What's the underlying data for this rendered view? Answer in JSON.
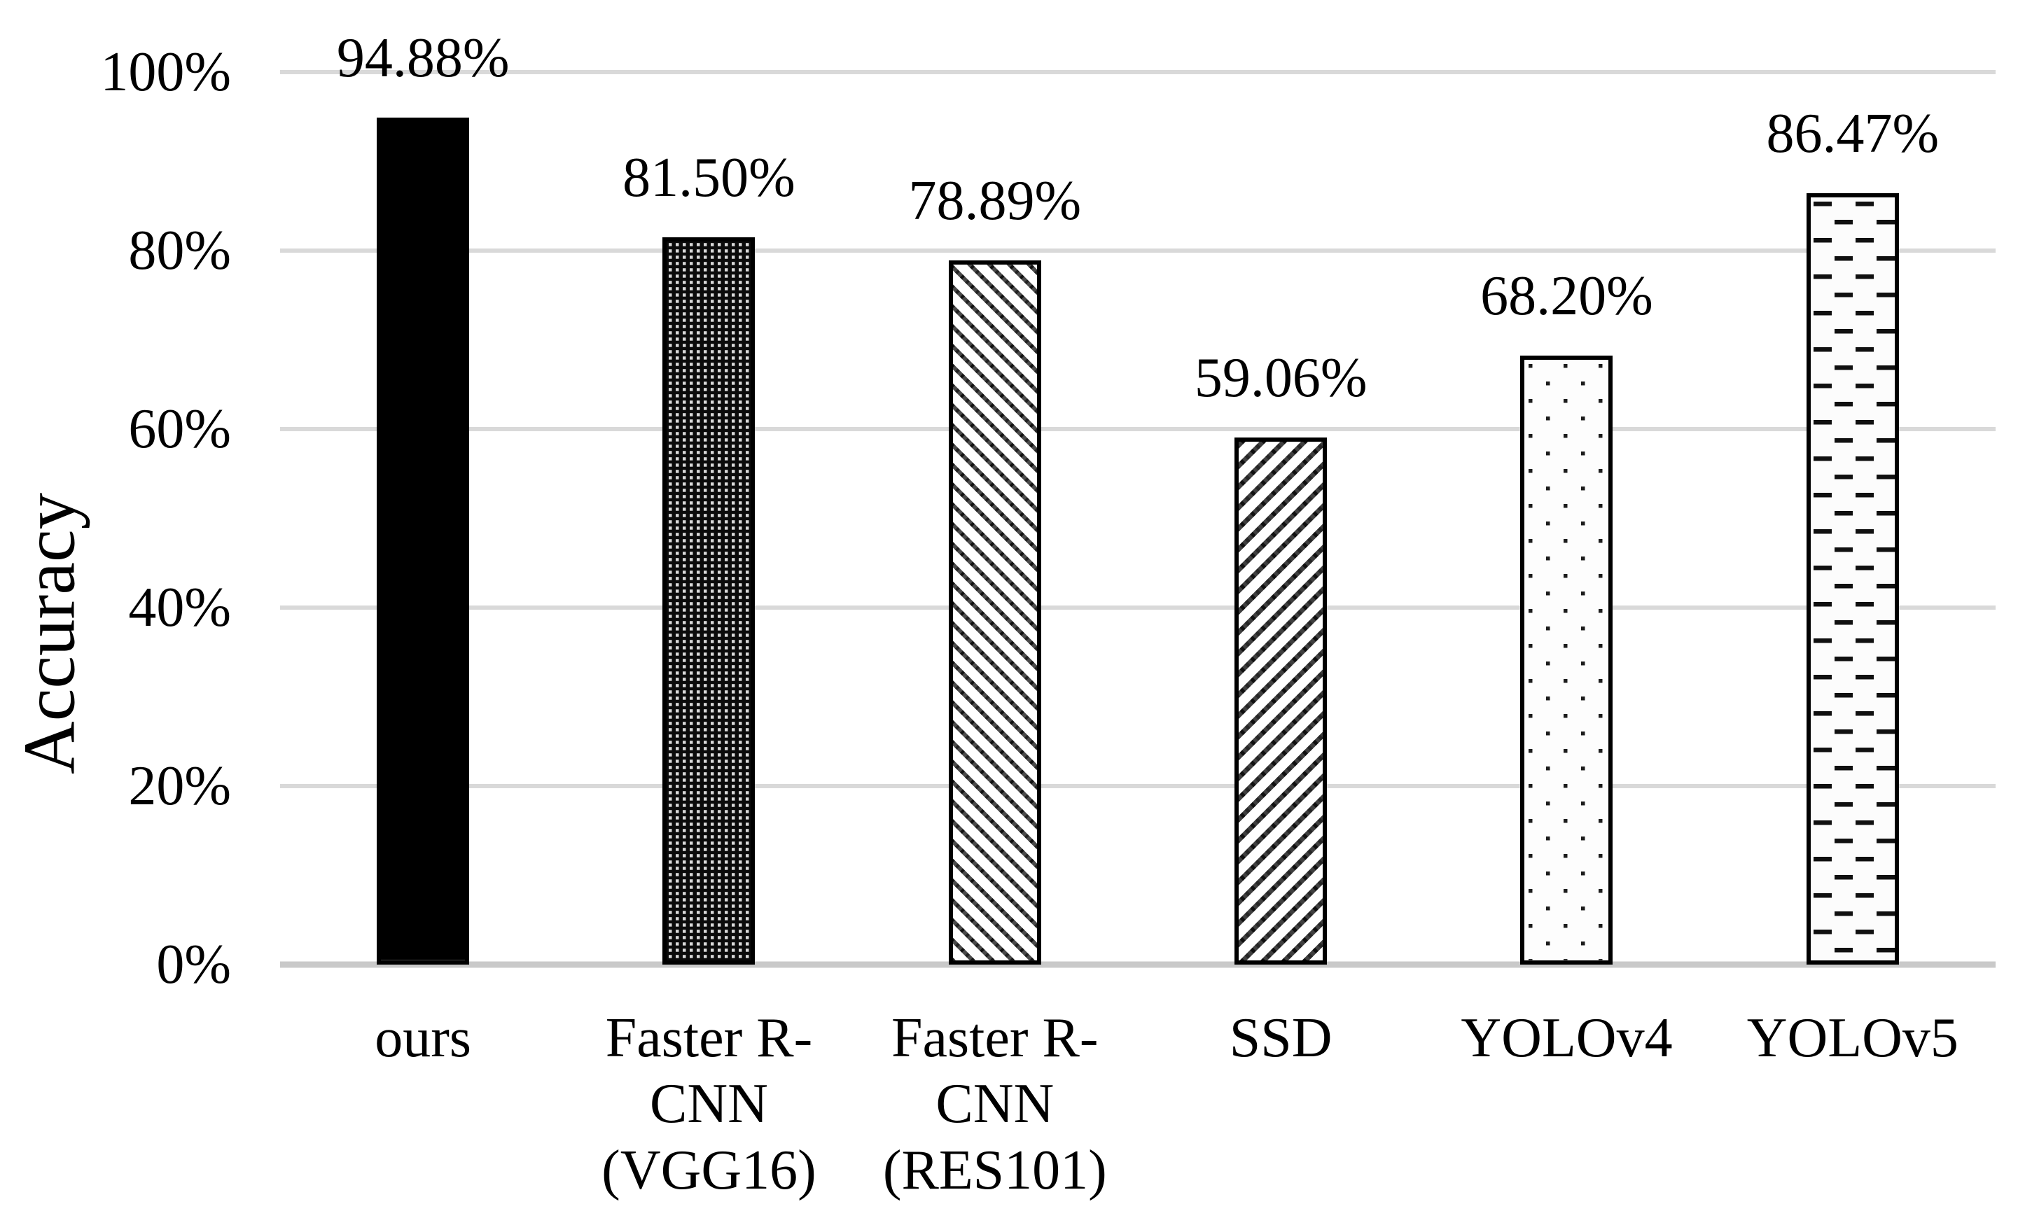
{
  "chart_data": {
    "type": "bar",
    "title": "",
    "xlabel": "",
    "ylabel": "Accuracy",
    "categories": [
      "ours",
      "Faster R-\nCNN\n(VGG16)",
      "Faster R-\nCNN\n(RES101)",
      "SSD",
      "YOLOv4",
      "YOLOv5"
    ],
    "values": [
      94.88,
      81.5,
      78.89,
      59.06,
      68.2,
      86.47
    ],
    "data_labels": [
      "94.88%",
      "81.50%",
      "78.89%",
      "59.06%",
      "68.20%",
      "86.47%"
    ],
    "bar_patterns": [
      "solid-black",
      "light-dot-grid-on-black",
      "thin-downward-diagonal-stripes",
      "upward-diagonal-stripes",
      "sparse-square-dots",
      "staggered-horizontal-dashes"
    ],
    "y_tick_labels": [
      "100%",
      "80%",
      "60%",
      "40%",
      "20%",
      "0%"
    ],
    "y_tick_values": [
      100,
      80,
      60,
      40,
      20,
      0
    ],
    "ylim": [
      0,
      100
    ],
    "grid": true,
    "legend_position": "none",
    "colors": {
      "background": "#ffffff",
      "text": "#000000",
      "gridline": "#d9d9d9",
      "axis_line": "#c9c9c9",
      "bar_border": "#000000",
      "bar_fill_dark": "#000000",
      "bar_fill_light": "#ffffff"
    }
  }
}
